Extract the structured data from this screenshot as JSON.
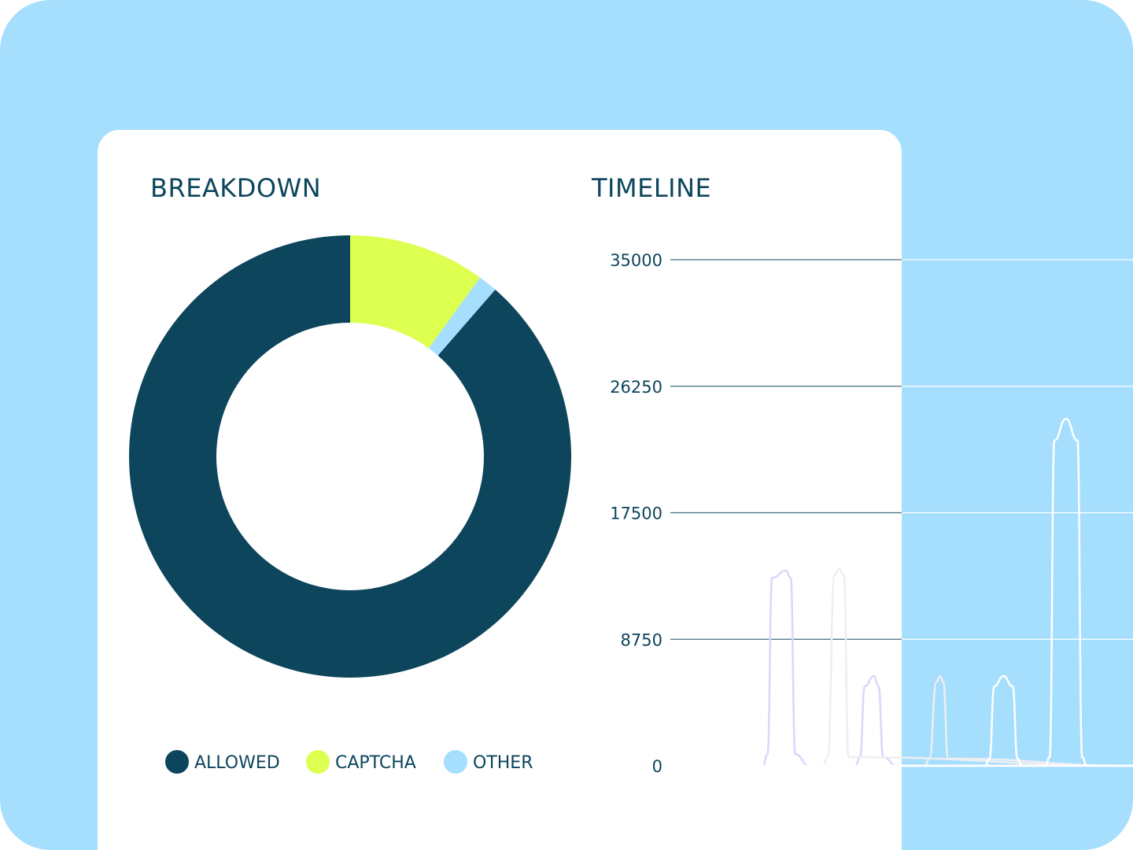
{
  "colors": {
    "page_background": "#a6defe",
    "card": "#ffffff",
    "text": "#0d455c",
    "allowed": "#0d455c",
    "captcha": "#dcff50",
    "other": "#a6defe",
    "gridline_on_card": "#3f6e80",
    "gridline_on_panel": "#ffffff"
  },
  "chart_data": [
    {
      "type": "pie",
      "variant": "donut",
      "title": "BREAKDOWN",
      "legend_position": "bottom",
      "slices": [
        {
          "label": "ALLOWED",
          "value": 88.6,
          "color": "#0d455c"
        },
        {
          "label": "CAPTCHA",
          "value": 10.0,
          "color": "#dcff50"
        },
        {
          "label": "OTHER",
          "value": 1.4,
          "color": "#a6defe"
        }
      ]
    },
    {
      "type": "line",
      "title": "TIMELINE",
      "ylim": [
        0,
        35000
      ],
      "yticks": [
        "0",
        "8750",
        "17500",
        "26250",
        "35000"
      ],
      "grid": true,
      "xlim": [
        0,
        100
      ],
      "series": [
        {
          "color": "#ddd5fb",
          "x": [
            0,
            20,
            21,
            22,
            25,
            26,
            27,
            30,
            31,
            40,
            41,
            42,
            44,
            45,
            46,
            49,
            50,
            100
          ],
          "y": [
            0,
            0,
            800,
            13000,
            13500,
            13000,
            800,
            0,
            0,
            0,
            600,
            5500,
            6200,
            5500,
            600,
            0,
            0,
            0
          ]
        },
        {
          "color": "#eeeef2",
          "x": [
            0,
            33,
            34,
            35.5,
            36.5,
            37.5,
            38.5,
            100
          ],
          "y": [
            0,
            0,
            600,
            13200,
            13600,
            13200,
            600,
            0
          ]
        },
        {
          "color": "#eeeef2",
          "x": [
            0,
            55,
            56,
            57.5,
            58.3,
            59,
            60,
            100
          ],
          "y": [
            0,
            0,
            500,
            5800,
            6200,
            5800,
            500,
            0
          ]
        },
        {
          "color": "#ffffff",
          "x": [
            0,
            68,
            69,
            70,
            72,
            74,
            75,
            76,
            100
          ],
          "y": [
            0,
            0,
            500,
            5500,
            6200,
            5500,
            500,
            0,
            0
          ]
        },
        {
          "color": "#ffffff",
          "x": [
            0,
            81,
            82,
            83,
            85.5,
            88,
            89,
            90,
            100
          ],
          "y": [
            0,
            0,
            600,
            22500,
            24000,
            22500,
            600,
            0,
            0
          ]
        }
      ]
    }
  ]
}
